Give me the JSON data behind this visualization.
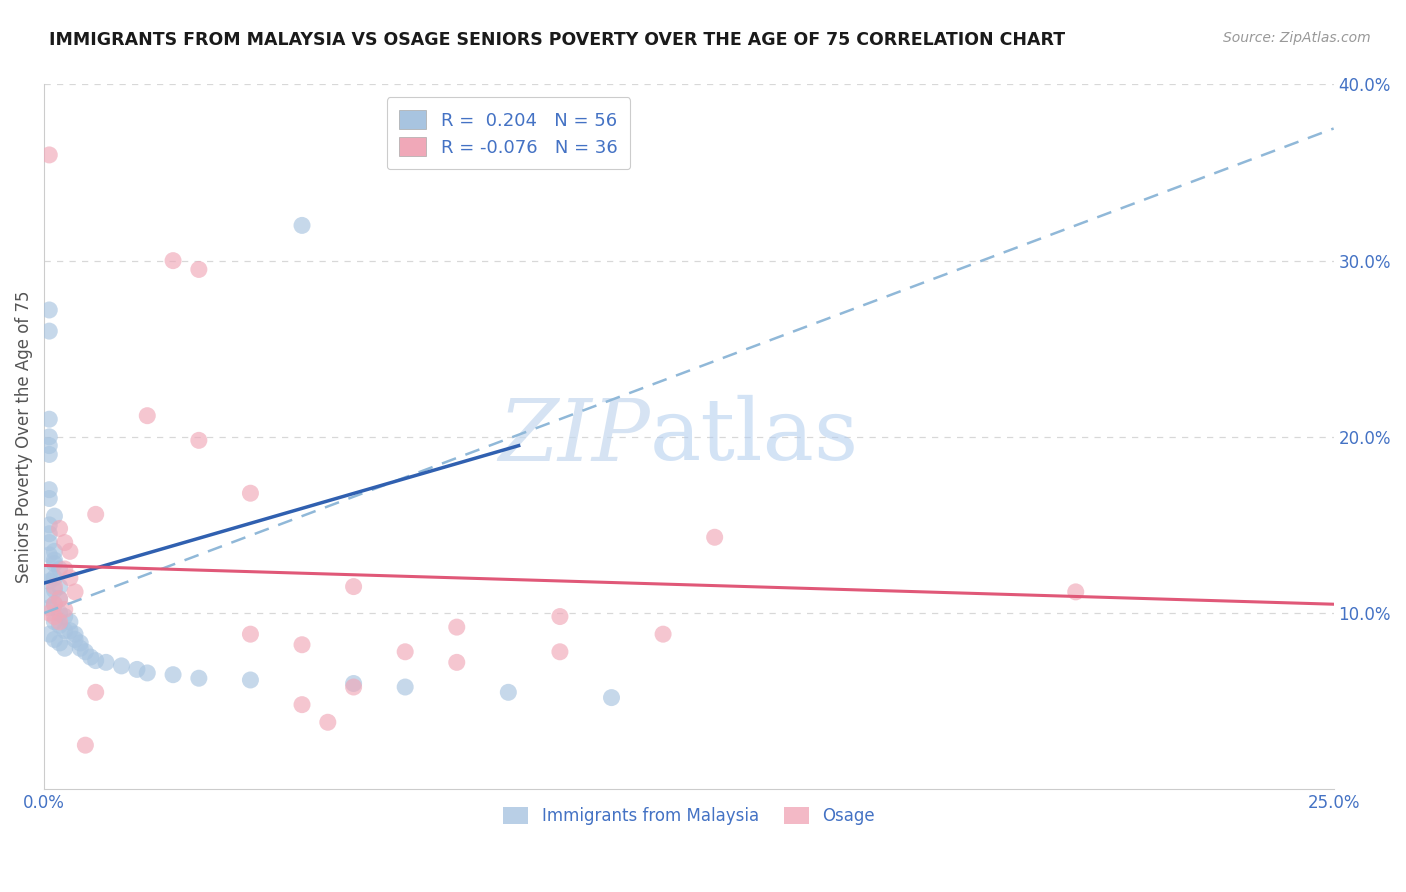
{
  "title": "IMMIGRANTS FROM MALAYSIA VS OSAGE SENIORS POVERTY OVER THE AGE OF 75 CORRELATION CHART",
  "source": "Source: ZipAtlas.com",
  "ylabel": "Seniors Poverty Over the Age of 75",
  "xlim": [
    0,
    0.25
  ],
  "ylim": [
    0,
    0.4
  ],
  "xticks": [
    0.0,
    0.05,
    0.1,
    0.15,
    0.2,
    0.25
  ],
  "xtick_labels": [
    "0.0%",
    "",
    "",
    "",
    "",
    "25.0%"
  ],
  "yticks_right": [
    0.1,
    0.2,
    0.3,
    0.4
  ],
  "ytick_labels_right": [
    "10.0%",
    "20.0%",
    "30.0%",
    "40.0%"
  ],
  "legend_label_blue": "R =  0.204   N = 56",
  "legend_label_pink": "R = -0.076   N = 36",
  "blue_color": "#a8c4e0",
  "pink_color": "#f0a8b8",
  "blue_line_color": "#3060b0",
  "pink_line_color": "#e05878",
  "blue_dashed_color": "#90b8d8",
  "blue_scatter": [
    [
      0.001,
      0.272
    ],
    [
      0.001,
      0.26
    ],
    [
      0.001,
      0.21
    ],
    [
      0.001,
      0.2
    ],
    [
      0.001,
      0.195
    ],
    [
      0.001,
      0.19
    ],
    [
      0.001,
      0.17
    ],
    [
      0.001,
      0.165
    ],
    [
      0.002,
      0.155
    ],
    [
      0.001,
      0.15
    ],
    [
      0.001,
      0.145
    ],
    [
      0.001,
      0.14
    ],
    [
      0.002,
      0.135
    ],
    [
      0.001,
      0.133
    ],
    [
      0.002,
      0.13
    ],
    [
      0.002,
      0.128
    ],
    [
      0.003,
      0.125
    ],
    [
      0.001,
      0.122
    ],
    [
      0.002,
      0.12
    ],
    [
      0.001,
      0.118
    ],
    [
      0.003,
      0.115
    ],
    [
      0.002,
      0.113
    ],
    [
      0.001,
      0.11
    ],
    [
      0.003,
      0.108
    ],
    [
      0.002,
      0.105
    ],
    [
      0.001,
      0.103
    ],
    [
      0.003,
      0.1
    ],
    [
      0.004,
      0.098
    ],
    [
      0.002,
      0.095
    ],
    [
      0.003,
      0.093
    ],
    [
      0.004,
      0.09
    ],
    [
      0.001,
      0.088
    ],
    [
      0.002,
      0.085
    ],
    [
      0.003,
      0.083
    ],
    [
      0.004,
      0.08
    ],
    [
      0.005,
      0.095
    ],
    [
      0.005,
      0.09
    ],
    [
      0.006,
      0.088
    ],
    [
      0.006,
      0.085
    ],
    [
      0.007,
      0.083
    ],
    [
      0.007,
      0.08
    ],
    [
      0.008,
      0.078
    ],
    [
      0.009,
      0.075
    ],
    [
      0.01,
      0.073
    ],
    [
      0.012,
      0.072
    ],
    [
      0.015,
      0.07
    ],
    [
      0.018,
      0.068
    ],
    [
      0.02,
      0.066
    ],
    [
      0.025,
      0.065
    ],
    [
      0.03,
      0.063
    ],
    [
      0.04,
      0.062
    ],
    [
      0.06,
      0.06
    ],
    [
      0.07,
      0.058
    ],
    [
      0.09,
      0.055
    ],
    [
      0.11,
      0.052
    ],
    [
      0.05,
      0.32
    ]
  ],
  "pink_scatter": [
    [
      0.001,
      0.36
    ],
    [
      0.025,
      0.3
    ],
    [
      0.03,
      0.295
    ],
    [
      0.02,
      0.212
    ],
    [
      0.03,
      0.198
    ],
    [
      0.04,
      0.168
    ],
    [
      0.01,
      0.156
    ],
    [
      0.003,
      0.148
    ],
    [
      0.004,
      0.14
    ],
    [
      0.005,
      0.135
    ],
    [
      0.004,
      0.125
    ],
    [
      0.005,
      0.12
    ],
    [
      0.002,
      0.115
    ],
    [
      0.006,
      0.112
    ],
    [
      0.003,
      0.108
    ],
    [
      0.002,
      0.105
    ],
    [
      0.004,
      0.102
    ],
    [
      0.001,
      0.1
    ],
    [
      0.002,
      0.098
    ],
    [
      0.003,
      0.095
    ],
    [
      0.06,
      0.115
    ],
    [
      0.08,
      0.092
    ],
    [
      0.1,
      0.098
    ],
    [
      0.13,
      0.143
    ],
    [
      0.2,
      0.112
    ],
    [
      0.04,
      0.088
    ],
    [
      0.05,
      0.082
    ],
    [
      0.07,
      0.078
    ],
    [
      0.12,
      0.088
    ],
    [
      0.08,
      0.072
    ],
    [
      0.06,
      0.058
    ],
    [
      0.05,
      0.048
    ],
    [
      0.055,
      0.038
    ],
    [
      0.1,
      0.078
    ],
    [
      0.01,
      0.055
    ],
    [
      0.008,
      0.025
    ]
  ],
  "blue_line": [
    [
      0.0,
      0.117
    ],
    [
      0.092,
      0.195
    ]
  ],
  "blue_dash_line": [
    [
      0.0,
      0.1
    ],
    [
      0.25,
      0.375
    ]
  ],
  "pink_line": [
    [
      0.0,
      0.127
    ],
    [
      0.25,
      0.105
    ]
  ],
  "watermark_zip": "ZIP",
  "watermark_atlas": "atlas",
  "background_color": "#ffffff",
  "grid_color": "#d8d8d8"
}
